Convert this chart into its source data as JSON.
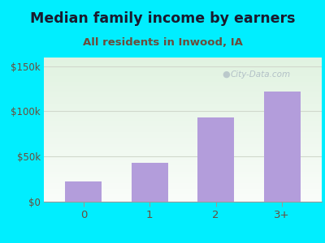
{
  "categories": [
    "0",
    "1",
    "2",
    "3+"
  ],
  "values": [
    22000,
    43000,
    93000,
    122000
  ],
  "bar_color": "#b39ddb",
  "title": "Median family income by earners",
  "subtitle": "All residents in Inwood, IA",
  "title_fontsize": 12.5,
  "subtitle_fontsize": 9.5,
  "ylabel_ticks": [
    0,
    50000,
    100000,
    150000
  ],
  "ylabel_labels": [
    "$0",
    "$50k",
    "$100k",
    "$150k"
  ],
  "ylim": [
    0,
    160000
  ],
  "background_color": "#00eeff",
  "title_color": "#1a1a2e",
  "subtitle_color": "#6b4c3b",
  "tick_label_color": "#6b4c3b",
  "watermark_text": "City-Data.com",
  "watermark_color": "#aab8c2",
  "grid_color": "#d0d8cc"
}
